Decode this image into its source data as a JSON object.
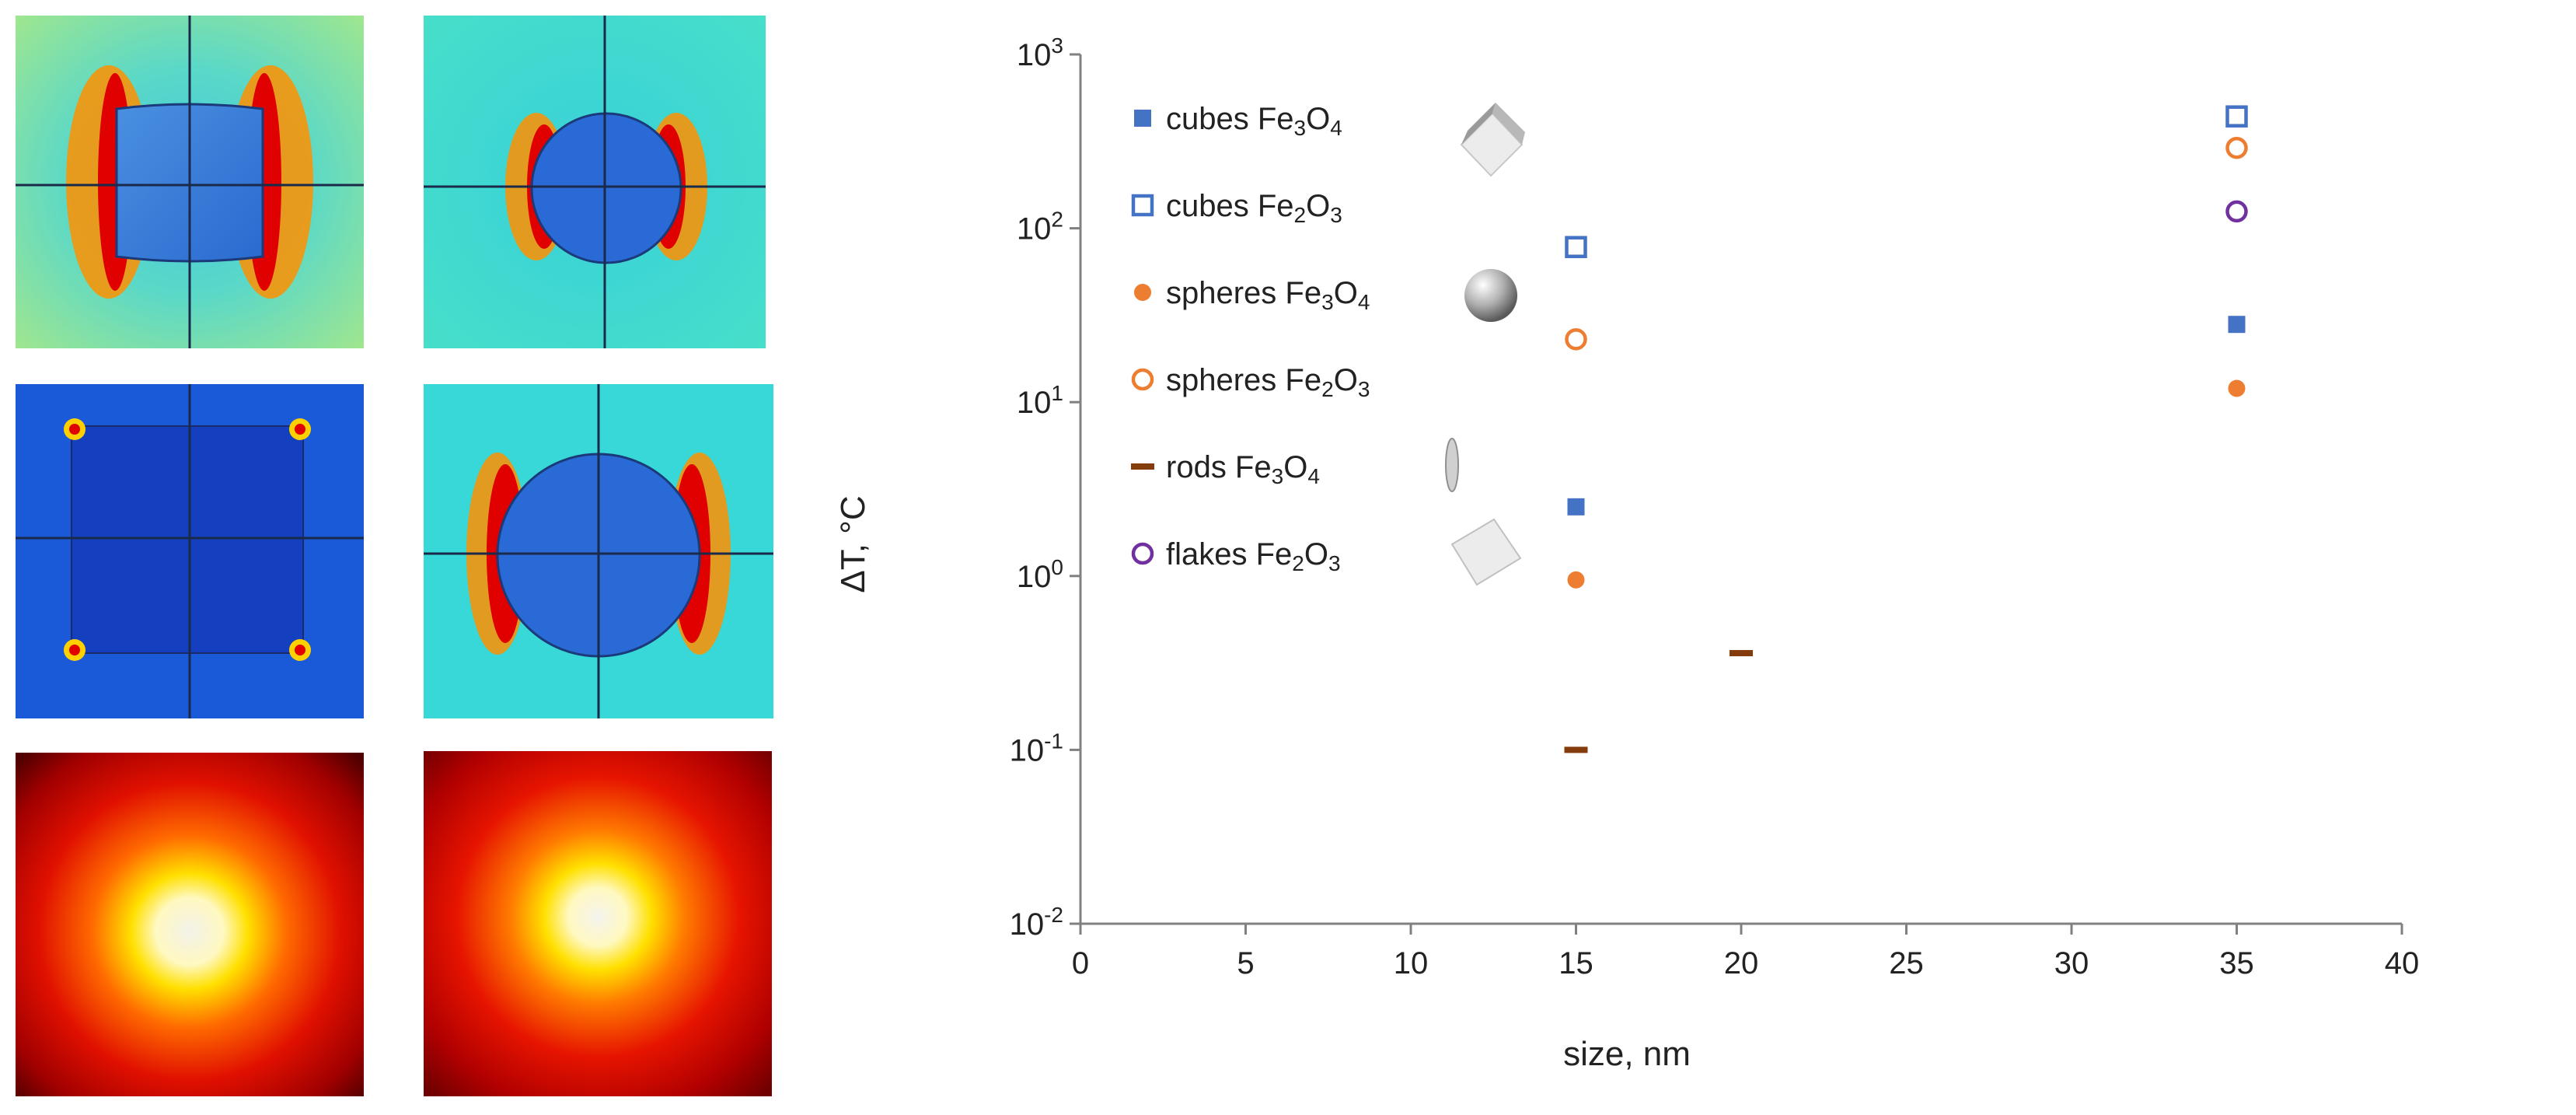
{
  "colors": {
    "cubes": "#4472c4",
    "spheres": "#ed7d31",
    "rods": "#843c0c",
    "flakes": "#7030a0"
  },
  "chart_data": {
    "type": "scatter",
    "xlabel": "size, nm",
    "ylabel": "ΔT, °C",
    "xlim": [
      0,
      40
    ],
    "ylim": [
      0.01,
      1000
    ],
    "yscale": "log",
    "x_ticks": [
      "0",
      "5",
      "10",
      "15",
      "20",
      "25",
      "30",
      "35",
      "40"
    ],
    "y_ticks": [
      {
        "base": "10",
        "exp": "3"
      },
      {
        "base": "10",
        "exp": "2"
      },
      {
        "base": "10",
        "exp": "1"
      },
      {
        "base": "10",
        "exp": "0"
      },
      {
        "base": "10",
        "exp": "-1"
      },
      {
        "base": "10",
        "exp": "-2"
      }
    ],
    "legend_position": "top-left",
    "series": [
      {
        "name": "cubes Fe3O4",
        "label_main": "cubes Fe",
        "sub1": "3",
        "mid": "O",
        "sub2": "4",
        "marker": "filled-square",
        "color_key": "cubes",
        "icon": "cube-icon",
        "points": [
          {
            "x": 15,
            "y": 2.5
          },
          {
            "x": 35,
            "y": 28
          }
        ]
      },
      {
        "name": "cubes Fe2O3",
        "label_main": "cubes Fe",
        "sub1": "2",
        "mid": "O",
        "sub2": "3",
        "marker": "open-square",
        "color_key": "cubes",
        "icon": "",
        "points": [
          {
            "x": 15,
            "y": 78
          },
          {
            "x": 35,
            "y": 440
          }
        ]
      },
      {
        "name": "spheres Fe3O4",
        "label_main": "spheres  Fe",
        "sub1": "3",
        "mid": "O",
        "sub2": "4",
        "marker": "filled-circle",
        "color_key": "spheres",
        "icon": "sphere-icon",
        "points": [
          {
            "x": 15,
            "y": 0.95
          },
          {
            "x": 35,
            "y": 12
          }
        ]
      },
      {
        "name": "spheres Fe2O3",
        "label_main": "spheres Fe",
        "sub1": "2",
        "mid": "O",
        "sub2": "3",
        "marker": "open-circle",
        "color_key": "spheres",
        "icon": "",
        "points": [
          {
            "x": 15,
            "y": 23
          },
          {
            "x": 35,
            "y": 290
          }
        ]
      },
      {
        "name": "rods Fe3O4",
        "label_main": "rods  Fe",
        "sub1": "3",
        "mid": "O",
        "sub2": "4",
        "marker": "dash",
        "color_key": "rods",
        "icon": "rod-icon",
        "points": [
          {
            "x": 15,
            "y": 0.1
          },
          {
            "x": 20,
            "y": 0.36
          }
        ]
      },
      {
        "name": "flakes Fe2O3",
        "label_main": "flakes Fe",
        "sub1": "2",
        "mid": "O",
        "sub2": "3",
        "marker": "open-circle",
        "color_key": "flakes",
        "icon": "flake-icon",
        "points": [
          {
            "x": 35,
            "y": 125
          }
        ]
      }
    ]
  }
}
